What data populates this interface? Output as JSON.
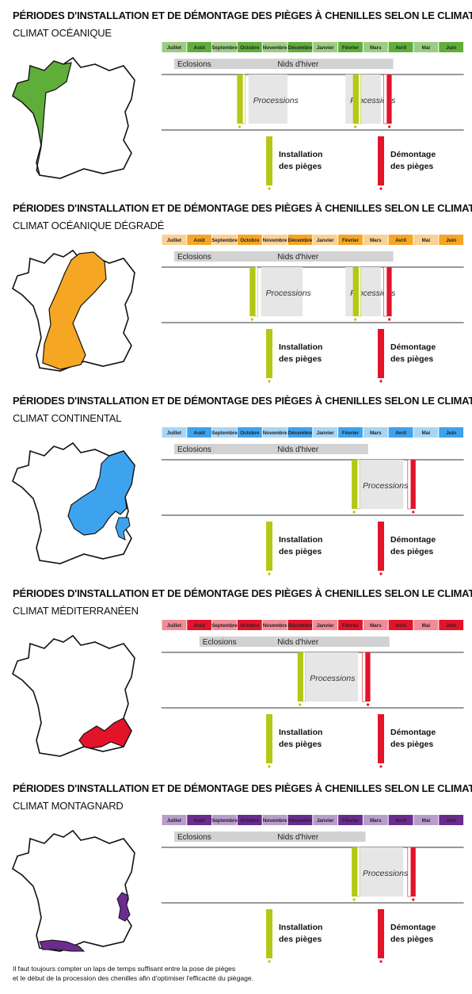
{
  "colors": {
    "installation": "#b5c714",
    "demontage": "#e3132a",
    "processions_box": "#e6e6e6",
    "eclosions_bar": "#d2d2d2",
    "oceanique": [
      "#9ccc82",
      "#5fae3a"
    ],
    "oceanique_degrade": [
      "#fbd094",
      "#f5a623"
    ],
    "continental": [
      "#a9d5f5",
      "#3da3ee"
    ],
    "mediterraneen": [
      "#f28b95",
      "#e3132a"
    ],
    "montagnard": [
      "#b89dcc",
      "#6a2c8e"
    ]
  },
  "footnote": {
    "line1": "Il faut toujours compter un laps de temps suffisant entre la pose de pièges",
    "line2": "et le début de la procession des chenilles afin d'optimiser l'efficacité du piègage."
  },
  "chart_data": [
    {
      "type": "timeline",
      "title": "PÉRIODES D'INSTALLATION ET DE DÉMONTAGE DES PIÈGES À CHENILLES SELON LE CLIMAT",
      "subtitle": "CLIMAT OCÉANIQUE",
      "map_icon": "france-map-oceanique",
      "months": [
        "Juillet",
        "Août",
        "Septembre",
        "Octobre",
        "Novembre",
        "Décembre",
        "Janvier",
        "Février",
        "Mars",
        "Avril",
        "Mai",
        "Juin"
      ],
      "bar": {
        "labels": [
          "Eclosions",
          "Nids d'hiver"
        ],
        "start": 0.0,
        "end": 9.2
      },
      "processions": [
        {
          "label": "Processions",
          "start": 3.45,
          "end": 5.0
        },
        {
          "label": "Processions",
          "start": 7.3,
          "end": 8.7
        }
      ],
      "installations": [
        3.0,
        7.6
      ],
      "demontages": [
        8.95
      ],
      "legend": {
        "installation": [
          "Installation",
          "des pièges"
        ],
        "demontage": [
          "Démontage",
          "des pièges"
        ]
      }
    },
    {
      "type": "timeline",
      "title": "PÉRIODES D'INSTALLATION ET DE DÉMONTAGE DES PIÈGES À CHENILLES SELON LE CLIMAT",
      "subtitle": "CLIMAT OCÉANIQUE DÉGRADÉ",
      "map_icon": "france-map-oceanique-degrade",
      "months": [
        "Juillet",
        "Août",
        "Septembre",
        "Octobre",
        "Novembre",
        "Décembre",
        "Janvier",
        "Février",
        "Mars",
        "Avril",
        "Mai",
        "Juin"
      ],
      "bar": {
        "labels": [
          "Eclosions",
          "Nids d'hiver"
        ],
        "start": 0.0,
        "end": 9.2
      },
      "processions": [
        {
          "label": "Processions",
          "start": 3.95,
          "end": 5.6
        },
        {
          "label": "Processions",
          "start": 7.3,
          "end": 8.7
        }
      ],
      "installations": [
        3.5,
        7.6
      ],
      "demontages": [
        8.95
      ],
      "legend": {
        "installation": [
          "Installation",
          "des pièges"
        ],
        "demontage": [
          "Démontage",
          "des pièges"
        ]
      }
    },
    {
      "type": "timeline",
      "title": "PÉRIODES D'INSTALLATION ET DE DÉMONTAGE DES PIÈGES À CHENILLES SELON LE CLIMAT",
      "subtitle": "CLIMAT CONTINENTAL",
      "map_icon": "france-map-continental",
      "months": [
        "Juillet",
        "Août",
        "Septembre",
        "Octobre",
        "Novembre",
        "Décembre",
        "Janvier",
        "Février",
        "Mars",
        "Avril",
        "Mai",
        "Juin"
      ],
      "bar": {
        "labels": [
          "Eclosions",
          "Nids d'hiver"
        ],
        "start": 0.0,
        "end": 8.2
      },
      "processions": [
        {
          "label": "Processions",
          "start": 7.8,
          "end": 9.6
        }
      ],
      "installations": [
        7.55
      ],
      "demontages": [
        9.9
      ],
      "legend": {
        "installation": [
          "Installation",
          "des pièges"
        ],
        "demontage": [
          "Démontage",
          "des pièges"
        ]
      }
    },
    {
      "type": "timeline",
      "title": "PÉRIODES D'INSTALLATION ET DE DÉMONTAGE DES PIÈGES À CHENILLES SELON LE CLIMAT",
      "subtitle": "CLIMAT MÉDITERRANÉEN",
      "map_icon": "france-map-mediterraneen",
      "months": [
        "Juillet",
        "Août",
        "Septembre",
        "Octobre",
        "Novembre",
        "Décembre",
        "Janvier",
        "Février",
        "Mars",
        "Avril",
        "Mai",
        "Juin"
      ],
      "bar": {
        "labels": [
          "Eclosions",
          "Nids d'hiver"
        ],
        "start": 1.0,
        "end": 9.05
      },
      "processions": [
        {
          "label": "Processions",
          "start": 5.7,
          "end": 7.8
        }
      ],
      "installations": [
        5.4
      ],
      "demontages": [
        8.1
      ],
      "legend": {
        "installation": [
          "Installation",
          "des pièges"
        ],
        "demontage": [
          "Démontage",
          "des pièges"
        ]
      }
    },
    {
      "type": "timeline",
      "title": "PÉRIODES D'INSTALLATION ET DE DÉMONTAGE DES PIÈGES À CHENILLES SELON LE CLIMAT",
      "subtitle": "CLIMAT MONTAGNARD",
      "map_icon": "france-map-montagnard",
      "months": [
        "Juillet",
        "Août",
        "Septembre",
        "Octobre",
        "Novembre",
        "Décembre",
        "Janvier",
        "Février",
        "Mars",
        "Avril",
        "Mai",
        "Juin"
      ],
      "bar": {
        "labels": [
          "Eclosions",
          "Nids d'hiver"
        ],
        "start": 0.0,
        "end": 8.1
      },
      "processions": [
        {
          "label": "Processions",
          "start": 7.8,
          "end": 9.6
        }
      ],
      "installations": [
        7.55
      ],
      "demontages": [
        9.9
      ],
      "legend": {
        "installation": [
          "Installation",
          "des pièges"
        ],
        "demontage": [
          "Démontage",
          "des pièges"
        ]
      }
    }
  ]
}
